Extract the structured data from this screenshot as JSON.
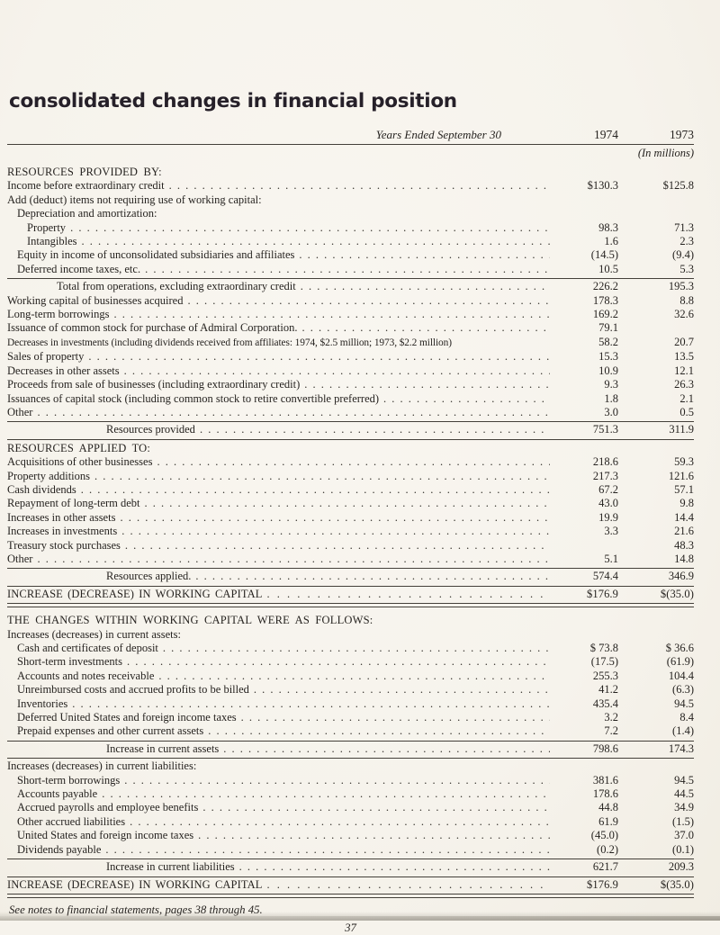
{
  "doc": {
    "title": "consolidated changes in financial position",
    "footnote": "See notes to financial statements, pages 38 through 45.",
    "page_number": "37"
  },
  "table": {
    "columns": {
      "caption": "Years Ended September 30",
      "year1": "1974",
      "year2": "1973",
      "units": "(In millions)"
    },
    "rows": [
      {
        "kind": "section",
        "label": "RESOURCES PROVIDED BY:"
      },
      {
        "kind": "item",
        "label": "Income before extraordinary credit",
        "dots": true,
        "v1": "$130.3",
        "v2": "$125.8"
      },
      {
        "kind": "item",
        "label": "Add (deduct) items not requiring use of working capital:"
      },
      {
        "kind": "item",
        "indent": 1,
        "label": "Depreciation and amortization:"
      },
      {
        "kind": "item",
        "indent": 2,
        "label": "Property",
        "dots": true,
        "v1": "98.3",
        "v2": "71.3"
      },
      {
        "kind": "item",
        "indent": 2,
        "label": "Intangibles",
        "dots": true,
        "v1": "1.6",
        "v2": "2.3"
      },
      {
        "kind": "item",
        "indent": 1,
        "label": "Equity in income of unconsolidated subsidiaries and affiliates",
        "dots": true,
        "v1": "(14.5)",
        "v2": "(9.4)"
      },
      {
        "kind": "item",
        "indent": 1,
        "label": "Deferred income taxes, etc.",
        "dots": true,
        "v1": "10.5",
        "v2": "5.3"
      },
      {
        "kind": "rule",
        "style": "single"
      },
      {
        "kind": "total",
        "indent": 5,
        "label": "Total from operations, excluding extraordinary credit",
        "dots": true,
        "v1": "226.2",
        "v2": "195.3"
      },
      {
        "kind": "item",
        "label": "Working capital of businesses acquired",
        "dots": true,
        "v1": "178.3",
        "v2": "8.8"
      },
      {
        "kind": "item",
        "label": "Long-term borrowings",
        "dots": true,
        "v1": "169.2",
        "v2": "32.6"
      },
      {
        "kind": "item",
        "label": "Issuance of common stock for purchase of Admiral Corporation.",
        "dots": true,
        "v1": "79.1",
        "v2": ""
      },
      {
        "kind": "item",
        "small": true,
        "label": "Decreases in investments (including dividends received from affiliates: 1974, $2.5 million; 1973, $2.2 million)",
        "v1": "58.2",
        "v2": "20.7"
      },
      {
        "kind": "item",
        "label": "Sales of property",
        "dots": true,
        "v1": "15.3",
        "v2": "13.5"
      },
      {
        "kind": "item",
        "label": "Decreases in other assets",
        "dots": true,
        "v1": "10.9",
        "v2": "12.1"
      },
      {
        "kind": "item",
        "label": "Proceeds from sale of businesses (including extraordinary credit)",
        "dots": true,
        "v1": "9.3",
        "v2": "26.3"
      },
      {
        "kind": "item",
        "label": "Issuances of capital stock (including common stock to retire convertible preferred)",
        "dots": true,
        "v1": "1.8",
        "v2": "2.1"
      },
      {
        "kind": "item",
        "label": "Other",
        "dots": true,
        "v1": "3.0",
        "v2": "0.5"
      },
      {
        "kind": "rule",
        "style": "single"
      },
      {
        "kind": "total",
        "indent": 10,
        "label": "Resources provided",
        "dots": true,
        "v1": "751.3",
        "v2": "311.9"
      },
      {
        "kind": "rule",
        "style": "single"
      },
      {
        "kind": "section",
        "label": "RESOURCES APPLIED TO:"
      },
      {
        "kind": "item",
        "label": "Acquisitions of other businesses",
        "dots": true,
        "v1": "218.6",
        "v2": "59.3"
      },
      {
        "kind": "item",
        "label": "Property additions",
        "dots": true,
        "v1": "217.3",
        "v2": "121.6"
      },
      {
        "kind": "item",
        "label": "Cash dividends",
        "dots": true,
        "v1": "67.2",
        "v2": "57.1"
      },
      {
        "kind": "item",
        "label": "Repayment of long-term debt",
        "dots": true,
        "v1": "43.0",
        "v2": "9.8"
      },
      {
        "kind": "item",
        "label": "Increases in other assets",
        "dots": true,
        "v1": "19.9",
        "v2": "14.4"
      },
      {
        "kind": "item",
        "label": "Increases in investments",
        "dots": true,
        "v1": "3.3",
        "v2": "21.6"
      },
      {
        "kind": "item",
        "label": "Treasury stock purchases",
        "dots": true,
        "v1": "",
        "v2": "48.3"
      },
      {
        "kind": "item",
        "label": "Other",
        "dots": true,
        "v1": "5.1",
        "v2": "14.8"
      },
      {
        "kind": "rule",
        "style": "single"
      },
      {
        "kind": "total",
        "indent": 10,
        "label": "Resources applied.",
        "dots": true,
        "v1": "574.4",
        "v2": "346.9"
      },
      {
        "kind": "rule",
        "style": "single"
      },
      {
        "kind": "grand",
        "label": "INCREASE (DECREASE) IN WORKING CAPITAL",
        "dots": true,
        "v1": "$176.9",
        "v2": "$(35.0)"
      },
      {
        "kind": "rule",
        "style": "double"
      },
      {
        "kind": "section",
        "big": true,
        "label": "THE CHANGES WITHIN WORKING CAPITAL WERE AS FOLLOWS:"
      },
      {
        "kind": "item",
        "label": "Increases (decreases) in current assets:"
      },
      {
        "kind": "item",
        "indent": 1,
        "label": "Cash and certificates of deposit",
        "dots": true,
        "v1": "$ 73.8",
        "v2": "$ 36.6"
      },
      {
        "kind": "item",
        "indent": 1,
        "label": "Short-term investments",
        "dots": true,
        "v1": "(17.5)",
        "v2": "(61.9)"
      },
      {
        "kind": "item",
        "indent": 1,
        "label": "Accounts and notes receivable",
        "dots": true,
        "v1": "255.3",
        "v2": "104.4"
      },
      {
        "kind": "item",
        "indent": 1,
        "label": "Unreimbursed costs and accrued profits to be billed",
        "dots": true,
        "v1": "41.2",
        "v2": "(6.3)"
      },
      {
        "kind": "item",
        "indent": 1,
        "label": "Inventories",
        "dots": true,
        "v1": "435.4",
        "v2": "94.5"
      },
      {
        "kind": "item",
        "indent": 1,
        "label": "Deferred United States and foreign income taxes",
        "dots": true,
        "v1": "3.2",
        "v2": "8.4"
      },
      {
        "kind": "item",
        "indent": 1,
        "label": "Prepaid expenses and other current assets",
        "dots": true,
        "v1": "7.2",
        "v2": "(1.4)"
      },
      {
        "kind": "rule",
        "style": "single"
      },
      {
        "kind": "total",
        "indent": 10,
        "label": "Increase in current assets",
        "dots": true,
        "v1": "798.6",
        "v2": "174.3"
      },
      {
        "kind": "rule",
        "style": "single"
      },
      {
        "kind": "item",
        "label": "Increases (decreases) in current liabilities:"
      },
      {
        "kind": "item",
        "indent": 1,
        "label": "Short-term borrowings",
        "dots": true,
        "v1": "381.6",
        "v2": "94.5"
      },
      {
        "kind": "item",
        "indent": 1,
        "label": "Accounts payable",
        "dots": true,
        "v1": "178.6",
        "v2": "44.5"
      },
      {
        "kind": "item",
        "indent": 1,
        "label": "Accrued payrolls and employee benefits",
        "dots": true,
        "v1": "44.8",
        "v2": "34.9"
      },
      {
        "kind": "item",
        "indent": 1,
        "label": "Other accrued liabilities",
        "dots": true,
        "v1": "61.9",
        "v2": "(1.5)"
      },
      {
        "kind": "item",
        "indent": 1,
        "label": "United States and foreign income taxes",
        "dots": true,
        "v1": "(45.0)",
        "v2": "37.0"
      },
      {
        "kind": "item",
        "indent": 1,
        "label": "Dividends payable",
        "dots": true,
        "v1": "(0.2)",
        "v2": "(0.1)"
      },
      {
        "kind": "rule",
        "style": "single"
      },
      {
        "kind": "total",
        "indent": 10,
        "label": "Increase in current liabilities",
        "dots": true,
        "v1": "621.7",
        "v2": "209.3"
      },
      {
        "kind": "rule",
        "style": "single"
      },
      {
        "kind": "grand",
        "label": "INCREASE (DECREASE) IN WORKING CAPITAL",
        "dots": true,
        "v1": "$176.9",
        "v2": "$(35.0)"
      },
      {
        "kind": "rule",
        "style": "double"
      }
    ]
  }
}
